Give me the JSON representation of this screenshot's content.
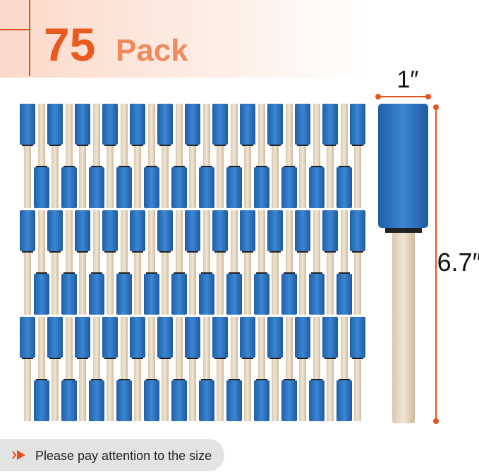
{
  "header": {
    "count": "75",
    "unit": "Pack"
  },
  "dimensions": {
    "width": "1″",
    "length": "6.7″"
  },
  "footer": {
    "note": "Please pay attention to the size"
  }
}
